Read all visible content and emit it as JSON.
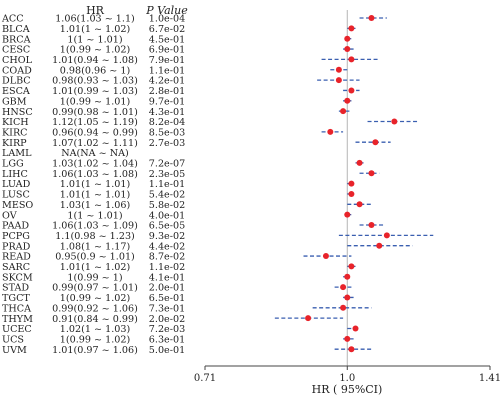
{
  "chart_data": {
    "type": "forest",
    "headers": {
      "hr": "HR",
      "p": "P Value"
    },
    "xlabel": "HR ( 95%CI)",
    "xticks": [
      "0.71",
      "1.0",
      "1.41"
    ],
    "xlim": [
      0.71,
      1.41
    ],
    "reference_line": 1.0,
    "point_color": "#e8232a",
    "ci_color": "#3a5fb0",
    "rows": [
      {
        "label": "ACC",
        "hr_text": "1.06(1.03 ~ 1.1)",
        "p": "1.0e-04",
        "hr": 1.06,
        "lo": 1.03,
        "hi": 1.1
      },
      {
        "label": "BLCA",
        "hr_text": "1.01(1 ~ 1.02)",
        "p": "6.7e-02",
        "hr": 1.01,
        "lo": 1.0,
        "hi": 1.02
      },
      {
        "label": "BRCA",
        "hr_text": "1(1 ~ 1.01)",
        "p": "4.5e-01",
        "hr": 1.0,
        "lo": 1.0,
        "hi": 1.01
      },
      {
        "label": "CESC",
        "hr_text": "1(0.99 ~ 1.02)",
        "p": "6.9e-01",
        "hr": 1.0,
        "lo": 0.99,
        "hi": 1.02
      },
      {
        "label": "CHOL",
        "hr_text": "1.01(0.94 ~ 1.08)",
        "p": "7.9e-01",
        "hr": 1.01,
        "lo": 0.94,
        "hi": 1.08
      },
      {
        "label": "COAD",
        "hr_text": "0.98(0.96 ~ 1)",
        "p": "1.1e-01",
        "hr": 0.98,
        "lo": 0.96,
        "hi": 1.0
      },
      {
        "label": "DLBC",
        "hr_text": "0.98(0.93 ~ 1.03)",
        "p": "4.2e-01",
        "hr": 0.98,
        "lo": 0.93,
        "hi": 1.03
      },
      {
        "label": "ESCA",
        "hr_text": "1.01(0.99 ~ 1.03)",
        "p": "2.8e-01",
        "hr": 1.01,
        "lo": 0.99,
        "hi": 1.03
      },
      {
        "label": "GBM",
        "hr_text": "1(0.99 ~ 1.01)",
        "p": "9.7e-01",
        "hr": 1.0,
        "lo": 0.99,
        "hi": 1.01
      },
      {
        "label": "HNSC",
        "hr_text": "0.99(0.98 ~ 1.01)",
        "p": "4.3e-01",
        "hr": 0.99,
        "lo": 0.98,
        "hi": 1.01
      },
      {
        "label": "KICH",
        "hr_text": "1.12(1.05 ~ 1.19)",
        "p": "8.2e-04",
        "hr": 1.12,
        "lo": 1.05,
        "hi": 1.19
      },
      {
        "label": "KIRC",
        "hr_text": "0.96(0.94 ~ 0.99)",
        "p": "8.5e-03",
        "hr": 0.96,
        "lo": 0.94,
        "hi": 0.99
      },
      {
        "label": "KIRP",
        "hr_text": "1.07(1.02 ~ 1.11)",
        "p": "2.7e-03",
        "hr": 1.07,
        "lo": 1.02,
        "hi": 1.11
      },
      {
        "label": "LAML",
        "hr_text": "NA(NA ~ NA)",
        "p": "",
        "hr": null,
        "lo": null,
        "hi": null
      },
      {
        "label": "LGG",
        "hr_text": "1.03(1.02 ~ 1.04)",
        "p": "7.2e-07",
        "hr": 1.03,
        "lo": 1.02,
        "hi": 1.04
      },
      {
        "label": "LIHC",
        "hr_text": "1.06(1.03 ~ 1.08)",
        "p": "2.3e-05",
        "hr": 1.06,
        "lo": 1.03,
        "hi": 1.08
      },
      {
        "label": "LUAD",
        "hr_text": "1.01(1 ~ 1.01)",
        "p": "1.1e-01",
        "hr": 1.01,
        "lo": 1.0,
        "hi": 1.01
      },
      {
        "label": "LUSC",
        "hr_text": "1.01(1 ~ 1.01)",
        "p": "5.4e-02",
        "hr": 1.01,
        "lo": 1.0,
        "hi": 1.01
      },
      {
        "label": "MESO",
        "hr_text": "1.03(1 ~ 1.06)",
        "p": "5.8e-02",
        "hr": 1.03,
        "lo": 1.0,
        "hi": 1.06
      },
      {
        "label": "OV",
        "hr_text": "1(1 ~ 1.01)",
        "p": "4.0e-01",
        "hr": 1.0,
        "lo": 1.0,
        "hi": 1.01
      },
      {
        "label": "PAAD",
        "hr_text": "1.06(1.03 ~ 1.09)",
        "p": "6.5e-05",
        "hr": 1.06,
        "lo": 1.03,
        "hi": 1.09
      },
      {
        "label": "PCPG",
        "hr_text": "1.1(0.98 ~ 1.23)",
        "p": "9.3e-02",
        "hr": 1.1,
        "lo": 0.98,
        "hi": 1.23
      },
      {
        "label": "PRAD",
        "hr_text": "1.08(1 ~ 1.17)",
        "p": "4.4e-02",
        "hr": 1.08,
        "lo": 1.0,
        "hi": 1.17
      },
      {
        "label": "READ",
        "hr_text": "0.95(0.9 ~ 1.01)",
        "p": "8.7e-02",
        "hr": 0.95,
        "lo": 0.9,
        "hi": 1.01
      },
      {
        "label": "SARC",
        "hr_text": "1.01(1 ~ 1.02)",
        "p": "1.1e-02",
        "hr": 1.01,
        "lo": 1.0,
        "hi": 1.02
      },
      {
        "label": "SKCM",
        "hr_text": "1(0.99 ~ 1)",
        "p": "4.1e-01",
        "hr": 1.0,
        "lo": 0.99,
        "hi": 1.0
      },
      {
        "label": "STAD",
        "hr_text": "0.99(0.97 ~ 1.01)",
        "p": "2.0e-01",
        "hr": 0.99,
        "lo": 0.97,
        "hi": 1.01
      },
      {
        "label": "TGCT",
        "hr_text": "1(0.99 ~ 1.02)",
        "p": "6.5e-01",
        "hr": 1.0,
        "lo": 0.99,
        "hi": 1.02
      },
      {
        "label": "THCA",
        "hr_text": "0.99(0.92 ~ 1.06)",
        "p": "7.3e-01",
        "hr": 0.99,
        "lo": 0.92,
        "hi": 1.06
      },
      {
        "label": "THYM",
        "hr_text": "0.91(0.84 ~ 0.99)",
        "p": "2.0e-02",
        "hr": 0.91,
        "lo": 0.84,
        "hi": 0.99
      },
      {
        "label": "UCEC",
        "hr_text": "1.02(1 ~ 1.03)",
        "p": "7.2e-03",
        "hr": 1.02,
        "lo": 1.0,
        "hi": 1.03
      },
      {
        "label": "UCS",
        "hr_text": "1(0.99 ~ 1.02)",
        "p": "6.3e-01",
        "hr": 1.0,
        "lo": 0.99,
        "hi": 1.02
      },
      {
        "label": "UVM",
        "hr_text": "1.01(0.97 ~ 1.06)",
        "p": "5.0e-01",
        "hr": 1.01,
        "lo": 0.97,
        "hi": 1.06
      }
    ]
  }
}
